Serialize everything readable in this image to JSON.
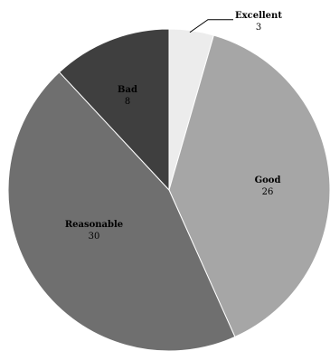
{
  "chart_data": {
    "type": "pie",
    "title": "",
    "slices": [
      {
        "label": "Excellent",
        "value": 3,
        "color": "#ececec"
      },
      {
        "label": "Good",
        "value": 26,
        "color": "#a6a6a6"
      },
      {
        "label": "Reasonable",
        "value": 30,
        "color": "#6f6f6f"
      },
      {
        "label": "Bad",
        "value": 8,
        "color": "#3f3f3f"
      }
    ],
    "start_angle_deg": -90,
    "direction": "clockwise",
    "slice_edge_color": "#ffffff",
    "legend": "none"
  }
}
